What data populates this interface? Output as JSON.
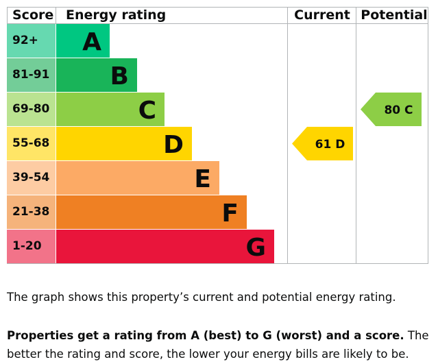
{
  "headers": {
    "score": "Score",
    "rating": "Energy rating",
    "current": "Current",
    "potential": "Potential"
  },
  "chart_data": {
    "type": "bar",
    "categories": [
      "A",
      "B",
      "C",
      "D",
      "E",
      "F",
      "G"
    ],
    "score_ranges": [
      "92+",
      "81-91",
      "69-80",
      "55-68",
      "39-54",
      "21-38",
      "1-20"
    ],
    "colors": [
      "#00c781",
      "#19b459",
      "#8dce46",
      "#ffd500",
      "#fcaa65",
      "#ef8023",
      "#e9153b"
    ],
    "score_cell_colors": [
      "#66d9b0",
      "#73cd98",
      "#bae391",
      "#ffe566",
      "#fdcca3",
      "#f5b37b",
      "#f27389"
    ],
    "current": {
      "score": 61,
      "band": "D",
      "label": "61 D"
    },
    "potential": {
      "score": 80,
      "band": "C",
      "label": "80 C"
    }
  },
  "description": {
    "line1": "The graph shows this property’s current and potential energy rating.",
    "line2_bold": "Properties get a rating from A (best) to G (worst) and a score.",
    "line2_rest": " The better the rating and score, the lower your energy bills are likely to be."
  }
}
